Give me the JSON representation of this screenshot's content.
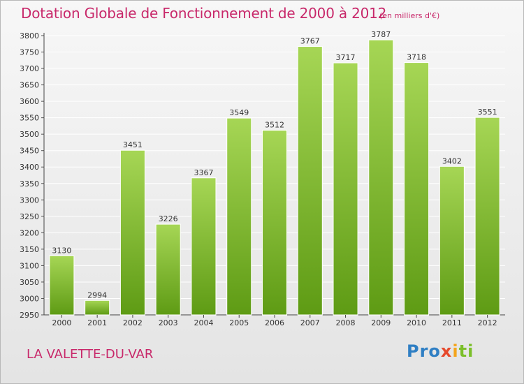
{
  "header": {
    "title": "Dotation Globale de Fonctionnement de 2000 à 2012",
    "subtitle": "(en milliers d'€)"
  },
  "footer": {
    "place": "LA VALETTE-DU-VAR",
    "logo": [
      "Pro",
      "x",
      "i",
      "ti"
    ]
  },
  "colors": {
    "title": "#c8286a",
    "bar_top": "#a6d655",
    "bar_bottom": "#5e9b14",
    "grid": "#ffffff"
  },
  "chart_data": {
    "type": "bar",
    "title": "Dotation Globale de Fonctionnement de 2000 à 2012",
    "subtitle": "(en milliers d'€)",
    "categories": [
      "2000",
      "2001",
      "2002",
      "2003",
      "2004",
      "2005",
      "2006",
      "2007",
      "2008",
      "2009",
      "2010",
      "2011",
      "2012"
    ],
    "values": [
      3130,
      2994,
      3451,
      3226,
      3367,
      3549,
      3512,
      3767,
      3717,
      3787,
      3718,
      3402,
      3551
    ],
    "ylim": [
      2950,
      3800
    ],
    "yticks": [
      2950,
      3000,
      3050,
      3100,
      3150,
      3200,
      3250,
      3300,
      3350,
      3400,
      3450,
      3500,
      3550,
      3600,
      3650,
      3700,
      3750,
      3800
    ],
    "grid": true,
    "data_labels": true
  }
}
